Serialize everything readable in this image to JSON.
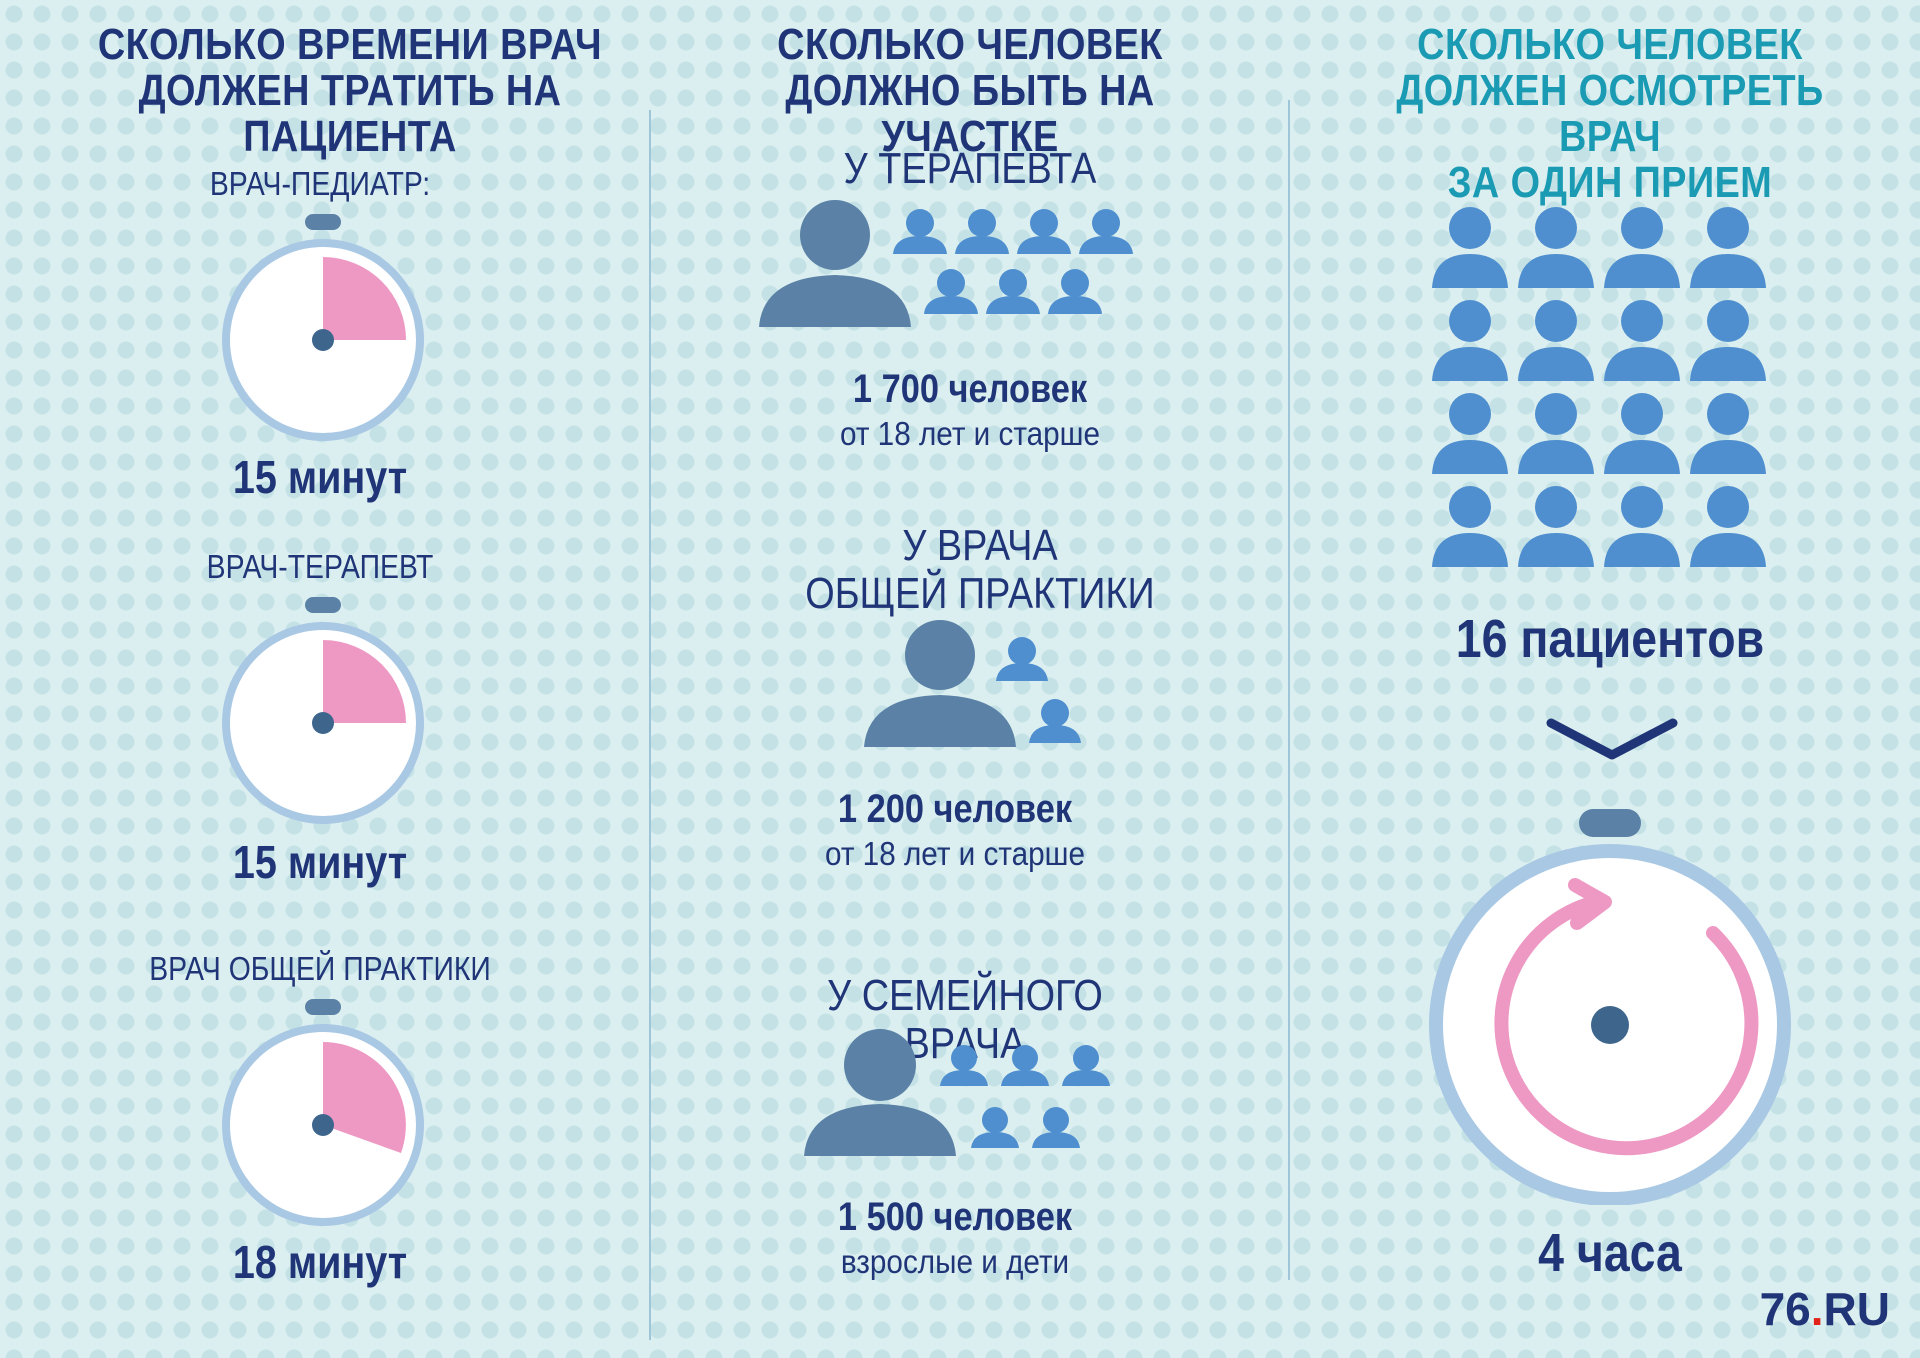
{
  "columns": {
    "time": {
      "title_line1": "СКОЛЬКО ВРЕМЕНИ ВРАЧ",
      "title_line2": "ДОЛЖЕН ТРАТИТЬ НА ПАЦИЕНТА",
      "timers": [
        {
          "label": "ВРАЧ-ПЕДИАТР:",
          "value": "15 минут",
          "minutes": 15
        },
        {
          "label": "ВРАЧ-ТЕРАПЕВТ",
          "value": "15 минут",
          "minutes": 15
        },
        {
          "label": "ВРАЧ ОБЩЕЙ ПРАКТИКИ",
          "value": "18 минут",
          "minutes": 18
        }
      ]
    },
    "district": {
      "title_line1": "СКОЛЬКО ЧЕЛОВЕК",
      "title_line2": "ДОЛЖНО БЫТЬ НА УЧАСТКЕ",
      "groups": [
        {
          "heading_line1": "У ТЕРАПЕВТА",
          "heading_line2": "",
          "count": "1 700 человек",
          "note": "от 18 лет и старше"
        },
        {
          "heading_line1": "У ВРАЧА",
          "heading_line2": "ОБЩЕЙ ПРАКТИКИ",
          "count": "1 200 человек",
          "note": "от 18 лет и старше"
        },
        {
          "heading_line1": "У СЕМЕЙНОГО ВРАЧА",
          "heading_line2": "",
          "count": "1 500 человек",
          "note": "взрослые и дети"
        }
      ]
    },
    "reception": {
      "title_line1": "СКОЛЬКО ЧЕЛОВЕК",
      "title_line2": "ДОЛЖЕН ОСМОТРЕТЬ ВРАЧ",
      "title_line3": "ЗА ОДИН ПРИЕМ",
      "patients": "16 пациентов",
      "patients_count": 16,
      "duration": "4 часа"
    }
  },
  "logo": {
    "main": "76",
    "dot": ".",
    "suffix": "RU"
  },
  "colors": {
    "navy": "#1f3577",
    "teal": "#1a9bb3",
    "pink": "#ee99c3",
    "ring": "#a9c8e4",
    "person_dark": "#5b82a6",
    "person_light": "#4f8fcf"
  }
}
